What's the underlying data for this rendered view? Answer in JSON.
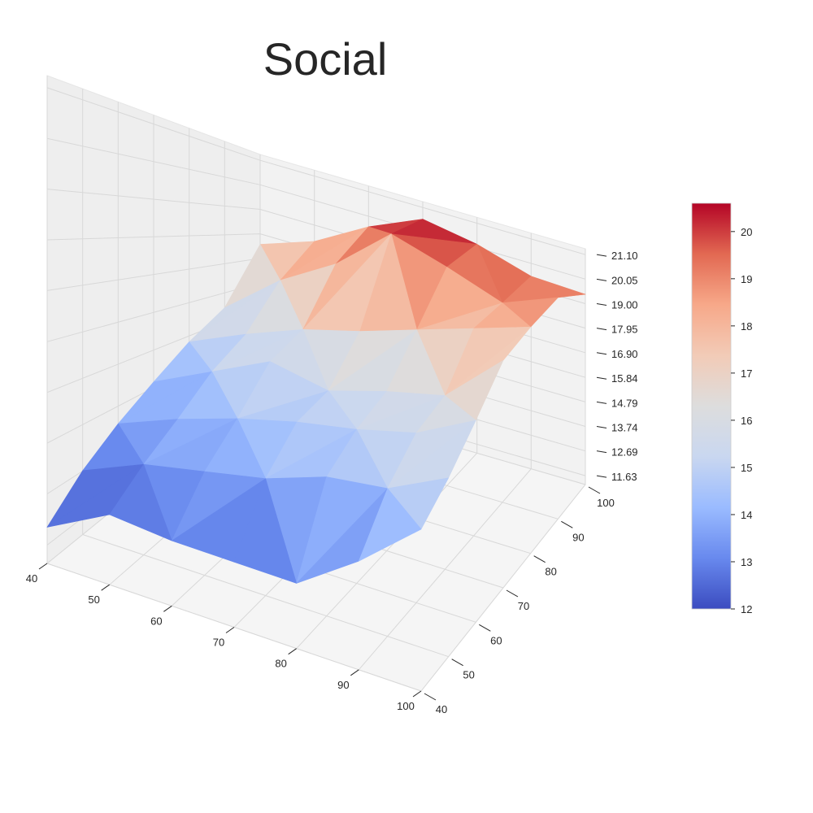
{
  "chart_data": {
    "type": "surface3d",
    "title": "Social",
    "xlabel": "",
    "ylabel": "",
    "zlabel": "",
    "x_ticks": [
      "40",
      "50",
      "60",
      "70",
      "80",
      "90",
      "100"
    ],
    "y_ticks": [
      "40",
      "50",
      "60",
      "70",
      "80",
      "90",
      "100"
    ],
    "z_ticks": [
      "11.63",
      "12.69",
      "13.74",
      "14.79",
      "15.84",
      "16.90",
      "17.95",
      "19.00",
      "20.05",
      "21.10"
    ],
    "colorbar_ticks": [
      "12",
      "13",
      "14",
      "15",
      "16",
      "17",
      "18",
      "19",
      "20"
    ],
    "colorbar_range": [
      12.0,
      20.6
    ],
    "colormap": "coolwarm",
    "colormap_colors": [
      "#3b4cc0",
      "#6889ee",
      "#9abbff",
      "#c9d7f0",
      "#dddddd",
      "#f2cbb7",
      "#f7a889",
      "#e26952",
      "#b40426"
    ],
    "x_grid": [
      40,
      50,
      60,
      70,
      80,
      90,
      100
    ],
    "y_grid": [
      40,
      50,
      60,
      70,
      80,
      90,
      100
    ],
    "z_values": [
      [
        12.0,
        12.7,
        13.3,
        13.9,
        14.6,
        15.3,
        17.5
      ],
      [
        12.7,
        13.3,
        13.9,
        14.7,
        15.4,
        16.9,
        18.3
      ],
      [
        12.6,
        13.6,
        14.4,
        15.5,
        16.1,
        18.1,
        19.6
      ],
      [
        12.6,
        13.9,
        14.8,
        15.2,
        16.6,
        19.8,
        20.6
      ],
      [
        12.6,
        14.4,
        15.1,
        15.7,
        17.2,
        19.2,
        20.2
      ],
      [
        13.5,
        14.6,
        15.5,
        16.1,
        17.8,
        18.5,
        19.5
      ],
      [
        14.6,
        15.3,
        16.3,
        17.6,
        18.4,
        19.3,
        19.4
      ]
    ]
  }
}
